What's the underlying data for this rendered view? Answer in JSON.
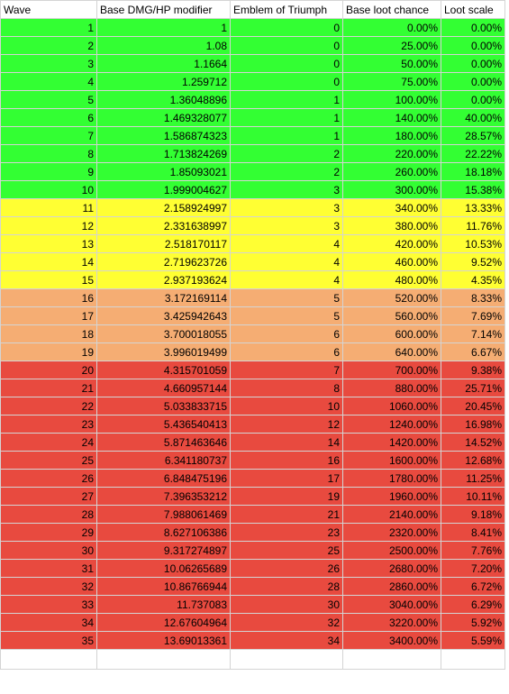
{
  "columns": [
    "Wave",
    "Base DMG/HP modifier",
    "Emblem of Triumph",
    "Base loot chance",
    "Loot scale"
  ],
  "tier_colors": {
    "green": "#33ff33",
    "yellow": "#ffff33",
    "orange": "#f5ad73",
    "red": "#e84a3f"
  },
  "rows": [
    {
      "wave": "1",
      "modifier": "1",
      "emblem": "0",
      "loot": "0.00%",
      "scale": "0.00%",
      "tier": "green"
    },
    {
      "wave": "2",
      "modifier": "1.08",
      "emblem": "0",
      "loot": "25.00%",
      "scale": "0.00%",
      "tier": "green"
    },
    {
      "wave": "3",
      "modifier": "1.1664",
      "emblem": "0",
      "loot": "50.00%",
      "scale": "0.00%",
      "tier": "green"
    },
    {
      "wave": "4",
      "modifier": "1.259712",
      "emblem": "0",
      "loot": "75.00%",
      "scale": "0.00%",
      "tier": "green"
    },
    {
      "wave": "5",
      "modifier": "1.36048896",
      "emblem": "1",
      "loot": "100.00%",
      "scale": "0.00%",
      "tier": "green"
    },
    {
      "wave": "6",
      "modifier": "1.469328077",
      "emblem": "1",
      "loot": "140.00%",
      "scale": "40.00%",
      "tier": "green"
    },
    {
      "wave": "7",
      "modifier": "1.586874323",
      "emblem": "1",
      "loot": "180.00%",
      "scale": "28.57%",
      "tier": "green"
    },
    {
      "wave": "8",
      "modifier": "1.713824269",
      "emblem": "2",
      "loot": "220.00%",
      "scale": "22.22%",
      "tier": "green"
    },
    {
      "wave": "9",
      "modifier": "1.85093021",
      "emblem": "2",
      "loot": "260.00%",
      "scale": "18.18%",
      "tier": "green"
    },
    {
      "wave": "10",
      "modifier": "1.999004627",
      "emblem": "3",
      "loot": "300.00%",
      "scale": "15.38%",
      "tier": "green"
    },
    {
      "wave": "11",
      "modifier": "2.158924997",
      "emblem": "3",
      "loot": "340.00%",
      "scale": "13.33%",
      "tier": "yellow"
    },
    {
      "wave": "12",
      "modifier": "2.331638997",
      "emblem": "3",
      "loot": "380.00%",
      "scale": "11.76%",
      "tier": "yellow"
    },
    {
      "wave": "13",
      "modifier": "2.518170117",
      "emblem": "4",
      "loot": "420.00%",
      "scale": "10.53%",
      "tier": "yellow"
    },
    {
      "wave": "14",
      "modifier": "2.719623726",
      "emblem": "4",
      "loot": "460.00%",
      "scale": "9.52%",
      "tier": "yellow"
    },
    {
      "wave": "15",
      "modifier": "2.937193624",
      "emblem": "4",
      "loot": "480.00%",
      "scale": "4.35%",
      "tier": "yellow"
    },
    {
      "wave": "16",
      "modifier": "3.172169114",
      "emblem": "5",
      "loot": "520.00%",
      "scale": "8.33%",
      "tier": "orange"
    },
    {
      "wave": "17",
      "modifier": "3.425942643",
      "emblem": "5",
      "loot": "560.00%",
      "scale": "7.69%",
      "tier": "orange"
    },
    {
      "wave": "18",
      "modifier": "3.700018055",
      "emblem": "6",
      "loot": "600.00%",
      "scale": "7.14%",
      "tier": "orange"
    },
    {
      "wave": "19",
      "modifier": "3.996019499",
      "emblem": "6",
      "loot": "640.00%",
      "scale": "6.67%",
      "tier": "orange"
    },
    {
      "wave": "20",
      "modifier": "4.315701059",
      "emblem": "7",
      "loot": "700.00%",
      "scale": "9.38%",
      "tier": "red"
    },
    {
      "wave": "21",
      "modifier": "4.660957144",
      "emblem": "8",
      "loot": "880.00%",
      "scale": "25.71%",
      "tier": "red"
    },
    {
      "wave": "22",
      "modifier": "5.033833715",
      "emblem": "10",
      "loot": "1060.00%",
      "scale": "20.45%",
      "tier": "red"
    },
    {
      "wave": "23",
      "modifier": "5.436540413",
      "emblem": "12",
      "loot": "1240.00%",
      "scale": "16.98%",
      "tier": "red"
    },
    {
      "wave": "24",
      "modifier": "5.871463646",
      "emblem": "14",
      "loot": "1420.00%",
      "scale": "14.52%",
      "tier": "red"
    },
    {
      "wave": "25",
      "modifier": "6.341180737",
      "emblem": "16",
      "loot": "1600.00%",
      "scale": "12.68%",
      "tier": "red"
    },
    {
      "wave": "26",
      "modifier": "6.848475196",
      "emblem": "17",
      "loot": "1780.00%",
      "scale": "11.25%",
      "tier": "red"
    },
    {
      "wave": "27",
      "modifier": "7.396353212",
      "emblem": "19",
      "loot": "1960.00%",
      "scale": "10.11%",
      "tier": "red"
    },
    {
      "wave": "28",
      "modifier": "7.988061469",
      "emblem": "21",
      "loot": "2140.00%",
      "scale": "9.18%",
      "tier": "red"
    },
    {
      "wave": "29",
      "modifier": "8.627106386",
      "emblem": "23",
      "loot": "2320.00%",
      "scale": "8.41%",
      "tier": "red"
    },
    {
      "wave": "30",
      "modifier": "9.317274897",
      "emblem": "25",
      "loot": "2500.00%",
      "scale": "7.76%",
      "tier": "red"
    },
    {
      "wave": "31",
      "modifier": "10.06265689",
      "emblem": "26",
      "loot": "2680.00%",
      "scale": "7.20%",
      "tier": "red"
    },
    {
      "wave": "32",
      "modifier": "10.86766944",
      "emblem": "28",
      "loot": "2860.00%",
      "scale": "6.72%",
      "tier": "red"
    },
    {
      "wave": "33",
      "modifier": "11.737083",
      "emblem": "30",
      "loot": "3040.00%",
      "scale": "6.29%",
      "tier": "red"
    },
    {
      "wave": "34",
      "modifier": "12.67604964",
      "emblem": "32",
      "loot": "3220.00%",
      "scale": "5.92%",
      "tier": "red"
    },
    {
      "wave": "35",
      "modifier": "13.69013361",
      "emblem": "34",
      "loot": "3400.00%",
      "scale": "5.59%",
      "tier": "red"
    }
  ]
}
